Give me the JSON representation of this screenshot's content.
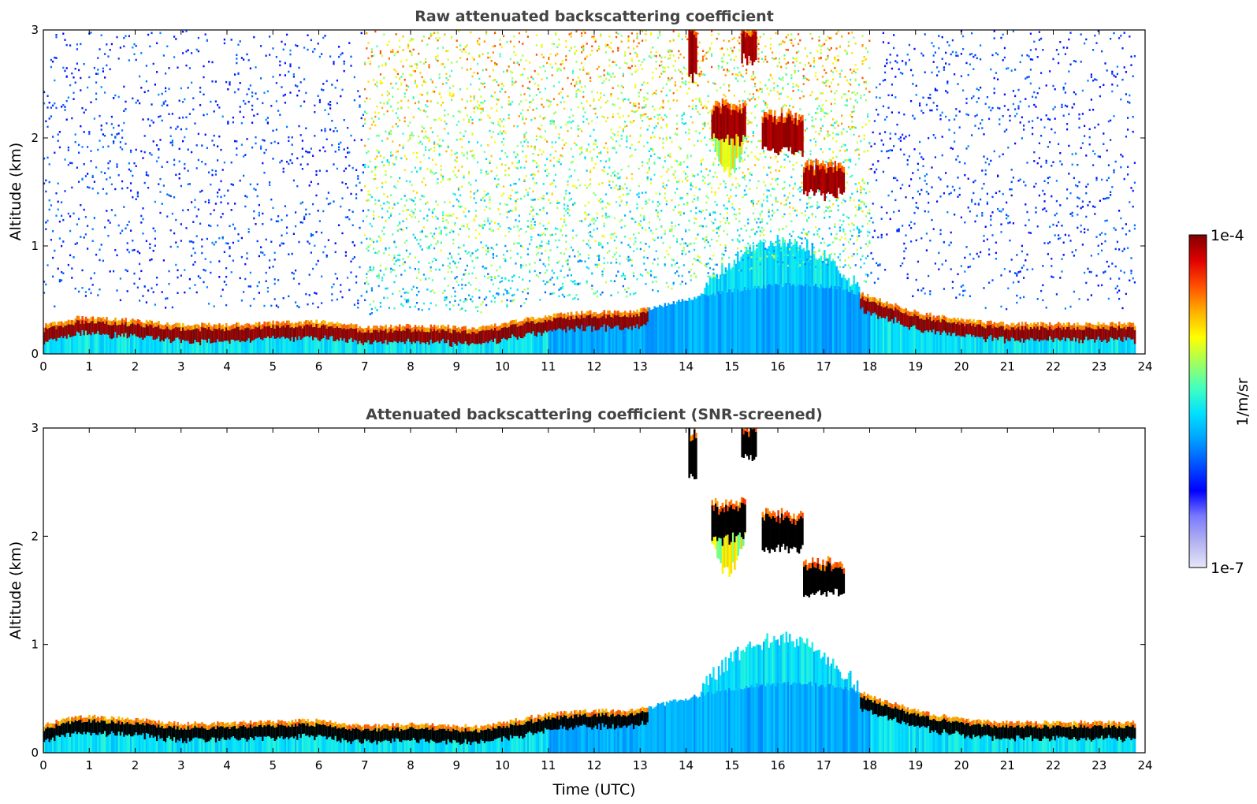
{
  "chart_data": [
    {
      "type": "heatmap",
      "title": "Raw attenuated backscattering coefficient",
      "xlabel": "",
      "ylabel": "Altitude (km)",
      "xlim": [
        0,
        24
      ],
      "ylim": [
        0,
        3
      ],
      "x_ticks": [
        "0",
        "1",
        "2",
        "3",
        "4",
        "5",
        "6",
        "7",
        "8",
        "9",
        "10",
        "11",
        "12",
        "13",
        "14",
        "15",
        "16",
        "17",
        "18",
        "19",
        "20",
        "21",
        "22",
        "23",
        "24"
      ],
      "y_ticks": [
        "0",
        "1",
        "2",
        "3"
      ],
      "data_end_time": 23.8,
      "boundary_layer_top_km": {
        "time": [
          0,
          0.8,
          2,
          3,
          4,
          5,
          6,
          7,
          8,
          9,
          9.5,
          10,
          10.5,
          11,
          12,
          12.8,
          13.5,
          14.5,
          15.5,
          16.5,
          17.5,
          18,
          19,
          20,
          21,
          22,
          23,
          23.8
        ],
        "height": [
          0.25,
          0.33,
          0.3,
          0.26,
          0.26,
          0.28,
          0.29,
          0.24,
          0.25,
          0.24,
          0.23,
          0.27,
          0.31,
          0.35,
          0.38,
          0.38,
          0.45,
          0.55,
          0.62,
          0.65,
          0.6,
          0.52,
          0.38,
          0.3,
          0.27,
          0.27,
          0.27,
          0.27
        ]
      },
      "cloud_layers": [
        {
          "t_start": 14.55,
          "t_end": 15.3,
          "base_km": 1.95,
          "top_km": 2.3
        },
        {
          "t_start": 15.65,
          "t_end": 16.55,
          "base_km": 1.85,
          "top_km": 2.2
        },
        {
          "t_start": 16.55,
          "t_end": 17.45,
          "base_km": 1.45,
          "top_km": 1.75
        },
        {
          "t_start": 15.2,
          "t_end": 15.55,
          "base_km": 2.7,
          "top_km": 3.0
        },
        {
          "t_start": 14.05,
          "t_end": 14.25,
          "base_km": 2.5,
          "top_km": 3.0
        }
      ],
      "noise_enhanced_window": [
        7,
        18
      ]
    },
    {
      "type": "heatmap",
      "title": "Attenuated backscattering coefficient (SNR-screened)",
      "xlabel": "Time (UTC)",
      "ylabel": "Altitude (km)",
      "xlim": [
        0,
        24
      ],
      "ylim": [
        0,
        3
      ],
      "x_ticks": [
        "0",
        "1",
        "2",
        "3",
        "4",
        "5",
        "6",
        "7",
        "8",
        "9",
        "10",
        "11",
        "12",
        "13",
        "14",
        "15",
        "16",
        "17",
        "18",
        "19",
        "20",
        "21",
        "22",
        "23",
        "24"
      ],
      "y_ticks": [
        "0",
        "1",
        "2",
        "3"
      ],
      "data_end_time": 23.8,
      "boundary_layer_top_km": {
        "time": [
          0,
          0.8,
          2,
          3,
          4,
          5,
          6,
          7,
          8,
          9,
          9.5,
          10,
          10.5,
          11,
          12,
          12.8,
          13.5,
          14.5,
          15.5,
          16.5,
          17.5,
          18,
          19,
          20,
          21,
          22,
          23,
          23.8
        ],
        "height": [
          0.25,
          0.33,
          0.3,
          0.26,
          0.26,
          0.28,
          0.29,
          0.24,
          0.25,
          0.24,
          0.23,
          0.27,
          0.31,
          0.35,
          0.38,
          0.38,
          0.45,
          0.55,
          0.62,
          0.65,
          0.6,
          0.52,
          0.38,
          0.3,
          0.27,
          0.27,
          0.27,
          0.27
        ]
      }
    }
  ],
  "colorbar": {
    "max_label": "1e-4",
    "min_label": "1e-7",
    "label": "1/m/sr",
    "colors": [
      "#e6e6fa",
      "#b3b3f0",
      "#7a7aff",
      "#0000ff",
      "#0050ff",
      "#00a0ff",
      "#00e0ff",
      "#40ffc0",
      "#a0ff60",
      "#ffff00",
      "#ffb000",
      "#ff5000",
      "#e00000",
      "#800000"
    ]
  }
}
